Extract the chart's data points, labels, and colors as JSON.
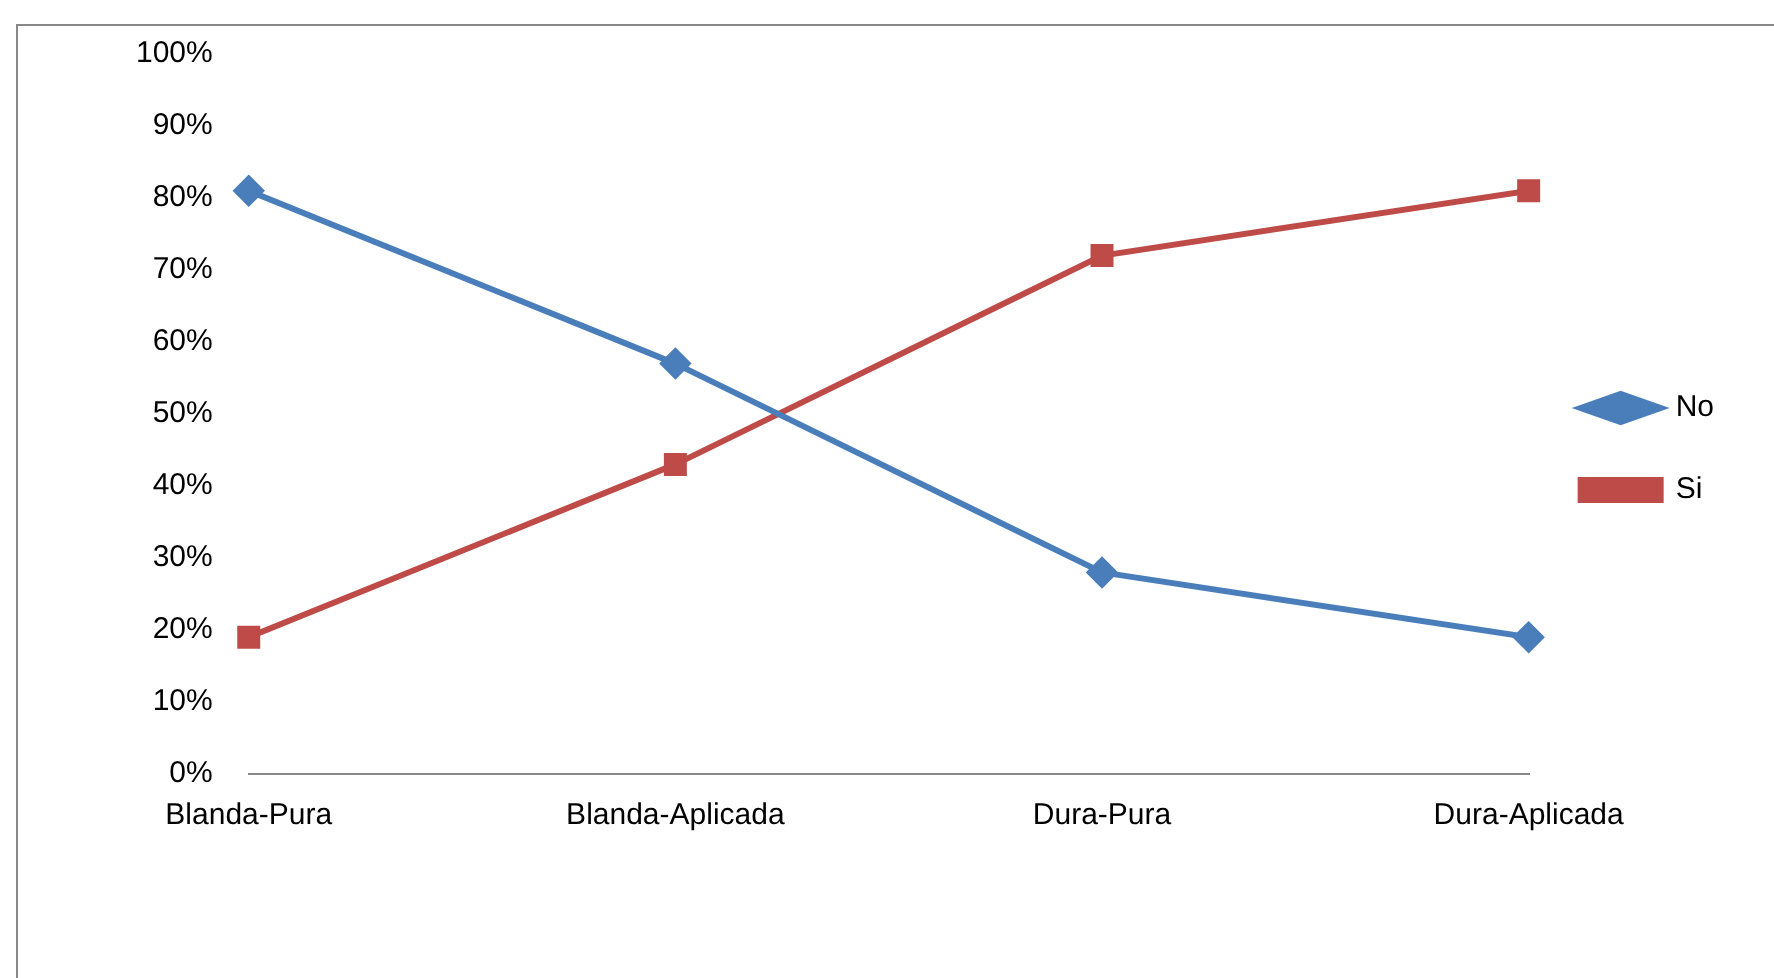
{
  "chart_data": {
    "type": "line",
    "categories": [
      "Blanda-Pura",
      "Blanda-Aplicada",
      "Dura-Pura",
      "Dura-Aplicada"
    ],
    "series": [
      {
        "name": "No",
        "color": "#4a7ebb",
        "marker": "diamond",
        "values": [
          81,
          57,
          28,
          19
        ]
      },
      {
        "name": "Si",
        "color": "#be4b48",
        "marker": "square",
        "values": [
          19,
          43,
          72,
          81
        ]
      }
    ],
    "ylim": [
      0,
      100
    ],
    "yticks": [
      {
        "value": 0,
        "label": "0%"
      },
      {
        "value": 10,
        "label": "10%"
      },
      {
        "value": 20,
        "label": "20%"
      },
      {
        "value": 30,
        "label": "30%"
      },
      {
        "value": 40,
        "label": "40%"
      },
      {
        "value": 50,
        "label": "50%"
      },
      {
        "value": 60,
        "label": "60%"
      },
      {
        "value": 70,
        "label": "70%"
      },
      {
        "value": 80,
        "label": "80%"
      },
      {
        "value": 90,
        "label": "90%"
      },
      {
        "value": 100,
        "label": "100%"
      }
    ],
    "grid": false,
    "legend": "right",
    "line_style": "solid"
  }
}
